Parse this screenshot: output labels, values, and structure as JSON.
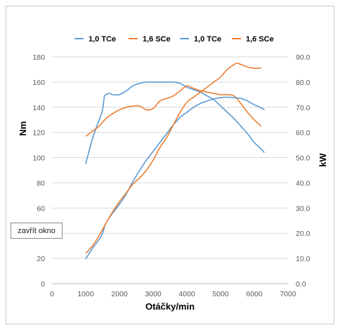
{
  "button": {
    "label": "zavřít okno"
  },
  "chart_data": {
    "type": "line",
    "xlabel": "Otáčky/min",
    "ylabel_left": "Nm",
    "ylabel_right": "kW",
    "xlim": [
      0,
      7000
    ],
    "ylim_left": [
      0,
      180
    ],
    "ylim_right": [
      0,
      90
    ],
    "x_ticks": [
      0,
      1000,
      2000,
      3000,
      4000,
      5000,
      6000,
      7000
    ],
    "y_left_ticks": [
      0,
      20,
      40,
      60,
      80,
      100,
      120,
      140,
      160,
      180
    ],
    "y_right_ticks": [
      "0.0",
      "10.0",
      "20.0",
      "30.0",
      "40.0",
      "50.0",
      "60.0",
      "70.0",
      "80.0",
      "90.0"
    ],
    "legend_position": "top",
    "colors": {
      "tce": "#5b9bd5",
      "sce": "#ed7d31"
    },
    "series": [
      {
        "name": "1,0 TCe",
        "axis": "left",
        "color": "#5b9bd5",
        "x": [
          1000,
          1200,
          1400,
          1500,
          1550,
          1600,
          1700,
          1800,
          2000,
          2200,
          2400,
          2600,
          2800,
          3000,
          3200,
          3400,
          3600,
          3800,
          4000,
          4200,
          4400,
          4600,
          4800,
          5000,
          5200,
          5400,
          5600,
          5800,
          6000,
          6200,
          6300
        ],
        "y": [
          95,
          115,
          130,
          138,
          148,
          150,
          151,
          150,
          150,
          153,
          157,
          159,
          160,
          160,
          160,
          160,
          160,
          159,
          156,
          154,
          152,
          149,
          146,
          141,
          136,
          131,
          125,
          119,
          112,
          107,
          104
        ]
      },
      {
        "name": "1,6 SCe",
        "axis": "left",
        "color": "#ed7d31",
        "x": [
          1000,
          1200,
          1400,
          1600,
          1800,
          2000,
          2200,
          2400,
          2600,
          2800,
          3000,
          3200,
          3400,
          3600,
          3800,
          4000,
          4200,
          4400,
          4600,
          4800,
          5000,
          5200,
          5400,
          5600,
          5800,
          6000,
          6200
        ],
        "y": [
          117,
          121,
          125,
          131,
          135,
          138,
          140,
          141,
          141,
          138,
          139,
          145,
          147,
          149,
          153,
          157,
          155,
          153,
          152,
          151,
          150,
          150,
          149,
          143,
          136,
          130,
          125
        ]
      },
      {
        "name": "1,0 TCe",
        "axis": "right",
        "color": "#5b9bd5",
        "x": [
          1000,
          1200,
          1400,
          1500,
          1600,
          1800,
          2000,
          2200,
          2400,
          2600,
          2800,
          3000,
          3200,
          3400,
          3600,
          3800,
          4000,
          4200,
          4400,
          4600,
          4800,
          5000,
          5200,
          5400,
          5600,
          5800,
          6000,
          6200,
          6300
        ],
        "y": [
          9.8,
          14,
          17.5,
          20,
          24,
          28,
          31.5,
          35.5,
          40.5,
          45,
          49,
          52.5,
          56,
          59.5,
          63,
          66,
          68,
          70,
          71.5,
          72.5,
          73.3,
          73.8,
          74,
          73.8,
          73.5,
          72.5,
          71,
          69.8,
          69
        ]
      },
      {
        "name": "1,6 SCe",
        "axis": "right",
        "color": "#ed7d31",
        "x": [
          1000,
          1200,
          1400,
          1600,
          1800,
          2000,
          2200,
          2400,
          2600,
          2800,
          3000,
          3200,
          3400,
          3600,
          3800,
          4000,
          4200,
          4400,
          4600,
          4800,
          5000,
          5200,
          5400,
          5500,
          5600,
          5800,
          6000,
          6200
        ],
        "y": [
          12,
          15,
          19,
          24,
          28.5,
          32.5,
          36,
          39.5,
          42,
          45,
          49,
          54,
          58,
          63,
          68,
          72,
          74,
          76,
          78,
          80,
          82,
          85,
          87,
          87.5,
          87,
          86,
          85.5,
          85.5
        ]
      }
    ]
  }
}
